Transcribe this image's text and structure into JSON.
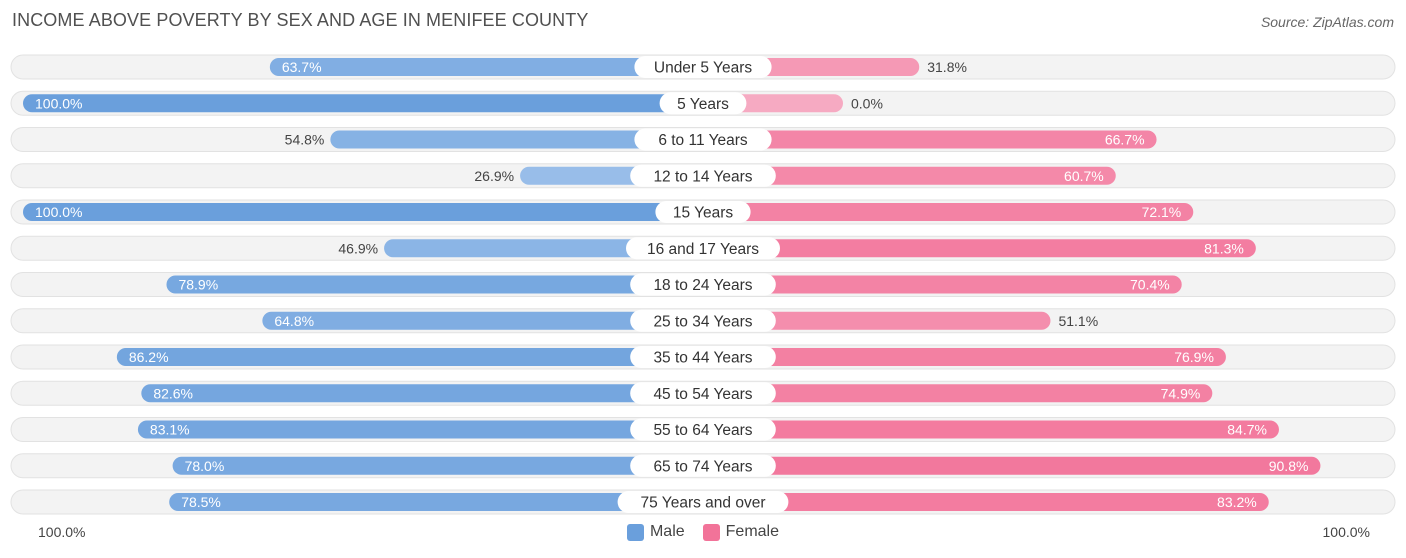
{
  "title": "INCOME ABOVE POVERTY BY SEX AND AGE IN MENIFEE COUNTY",
  "source": "Source: ZipAtlas.com",
  "colors": {
    "male_strong": "#6a9fdc",
    "male_light": "#a9c8ee",
    "female_strong": "#f27399",
    "female_light": "#f6aac2",
    "track": "#eeeeee"
  },
  "axis": {
    "left_label": "100.0%",
    "right_label": "100.0%"
  },
  "legend": {
    "male": "Male",
    "female": "Female"
  },
  "chart_data": {
    "type": "bar",
    "orientation": "diverging-horizontal",
    "title": "INCOME ABOVE POVERTY BY SEX AND AGE IN MENIFEE COUNTY",
    "xlim": [
      -100,
      100
    ],
    "categories": [
      "Under 5 Years",
      "5 Years",
      "6 to 11 Years",
      "12 to 14 Years",
      "15 Years",
      "16 and 17 Years",
      "18 to 24 Years",
      "25 to 34 Years",
      "35 to 44 Years",
      "45 to 54 Years",
      "55 to 64 Years",
      "65 to 74 Years",
      "75 Years and over"
    ],
    "series": [
      {
        "name": "Male",
        "values": [
          63.7,
          100.0,
          54.8,
          26.9,
          100.0,
          46.9,
          78.9,
          64.8,
          86.2,
          82.6,
          83.1,
          78.0,
          78.5
        ],
        "labels": [
          "63.7%",
          "100.0%",
          "54.8%",
          "26.9%",
          "100.0%",
          "46.9%",
          "78.9%",
          "64.8%",
          "86.2%",
          "82.6%",
          "83.1%",
          "78.0%",
          "78.5%"
        ]
      },
      {
        "name": "Female",
        "values": [
          31.8,
          0.0,
          66.7,
          60.7,
          72.1,
          81.3,
          70.4,
          51.1,
          76.9,
          74.9,
          84.7,
          90.8,
          83.2
        ],
        "labels": [
          "31.8%",
          "0.0%",
          "66.7%",
          "60.7%",
          "72.1%",
          "81.3%",
          "70.4%",
          "51.1%",
          "76.9%",
          "74.9%",
          "84.7%",
          "90.8%",
          "83.2%"
        ]
      }
    ],
    "legend_position": "bottom-center"
  }
}
